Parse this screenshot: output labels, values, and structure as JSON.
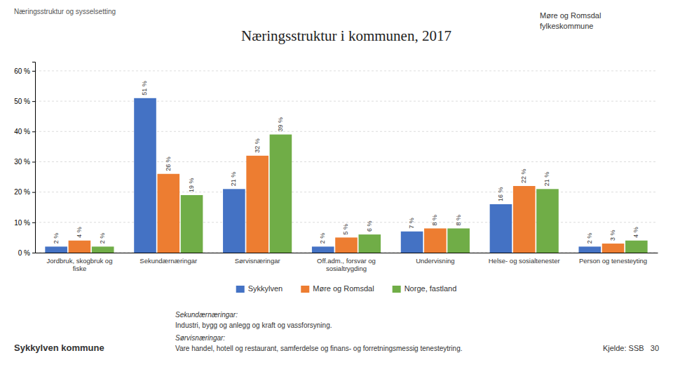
{
  "chart_data": {
    "type": "bar",
    "title": "Næringsstruktur i kommunen, 2017",
    "annotations": [
      "Næringsstruktur og sysselsetting",
      "Møre og Romsdal",
      "fylkeskommune",
      "Sykkylven kommune",
      "Sekundærnæringar:",
      "Industri, bygg og anlegg og kraft og vassforsyning.",
      "Sørvisnæringar:",
      "Vare handel, hotell og restaurant, samferdelse og finans- og forretningsmessig tenesteytring.",
      "Kjelde: SSB   30"
    ],
    "categories": [
      "Jordbruk, skogbruk og\nfiske",
      "Sekundærnæringar",
      "Sørvisnæringar",
      "Off.adm., forsvar og\nsosialtrygding",
      "Undervisning",
      "Helse- og sosialtenester",
      "Person og tenesteyting"
    ],
    "series": [
      {
        "name": "Sykkylven",
        "color": "#4472C4",
        "values": [
          2,
          51,
          21,
          2,
          7,
          16,
          2
        ],
        "value_labels": [
          "2 %",
          "51 %",
          "21 %",
          "2 %",
          "7 %",
          "16 %",
          "2 %"
        ]
      },
      {
        "name": "Møre og Romsdal",
        "color": "#ED7D31",
        "values": [
          4,
          26,
          32,
          5,
          8,
          22,
          3
        ],
        "value_labels": [
          "4 %",
          "26 %",
          "32 %",
          "5 %",
          "8 %",
          "22 %",
          "3 %"
        ]
      },
      {
        "name": "Norge, fastland",
        "color": "#70AD47",
        "values": [
          2,
          19,
          39,
          6,
          8,
          21,
          4
        ],
        "value_labels": [
          "2 %",
          "19 %",
          "39 %",
          "6 %",
          "8 %",
          "21 %",
          "4 %"
        ]
      }
    ],
    "ylim": [
      0,
      63
    ],
    "yticks": [
      {
        "value": 0,
        "label": "0 %"
      },
      {
        "value": 10,
        "label": "10 %"
      },
      {
        "value": 20,
        "label": "20 %"
      },
      {
        "value": 30,
        "label": "30 %"
      },
      {
        "value": 40,
        "label": "40 %"
      },
      {
        "value": 50,
        "label": "50 %"
      },
      {
        "value": 60,
        "label": "60 %"
      }
    ],
    "grid": true,
    "legend": "bottom",
    "data_labels": true
  }
}
